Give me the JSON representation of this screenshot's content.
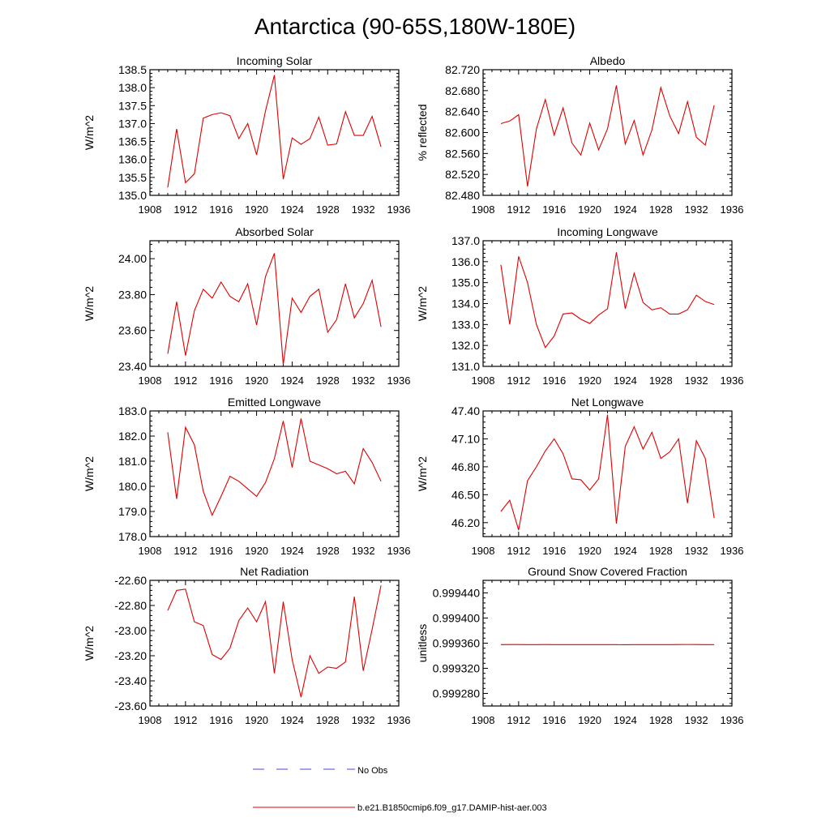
{
  "figure": {
    "title": "Antarctica (90-65S,180W-180E)",
    "line_color": "#e00000",
    "obs_color": "#4a4ad8"
  },
  "legend": [
    {
      "label": "No Obs",
      "style": "dashed",
      "color": "#4a4ad8"
    },
    {
      "label": "b.e21.B1850cmip6.f09_g17.DAMIP-hist-aer.003",
      "style": "solid",
      "color": "#e00000"
    }
  ],
  "chart_data": [
    {
      "type": "line",
      "title": "Incoming Solar",
      "ylabel": "W/m^2",
      "xlim": [
        1908,
        1936
      ],
      "xticks": [
        1908,
        1912,
        1916,
        1920,
        1924,
        1928,
        1932,
        1936
      ],
      "ylim": [
        135.0,
        138.5
      ],
      "yticks": [
        "135.0",
        "135.5",
        "136.0",
        "136.5",
        "137.0",
        "137.5",
        "138.0",
        "138.5"
      ],
      "x": [
        1910,
        1911,
        1912,
        1913,
        1914,
        1915,
        1916,
        1917,
        1918,
        1919,
        1920,
        1921,
        1922,
        1923,
        1924,
        1925,
        1926,
        1927,
        1928,
        1929,
        1930,
        1931,
        1932,
        1933,
        1934
      ],
      "values": [
        135.22,
        136.85,
        135.35,
        135.6,
        137.15,
        137.25,
        137.3,
        137.22,
        136.58,
        137.0,
        136.13,
        137.35,
        138.35,
        135.45,
        136.6,
        136.42,
        136.58,
        137.18,
        136.4,
        136.43,
        137.33,
        136.67,
        136.67,
        137.2,
        136.35
      ]
    },
    {
      "type": "line",
      "title": "Albedo",
      "ylabel": "% reflected",
      "xlim": [
        1908,
        1936
      ],
      "xticks": [
        1908,
        1912,
        1916,
        1920,
        1924,
        1928,
        1932,
        1936
      ],
      "ylim": [
        82.48,
        82.72
      ],
      "yticks": [
        "82.480",
        "82.520",
        "82.560",
        "82.600",
        "82.640",
        "82.680",
        "82.720"
      ],
      "x": [
        1910,
        1911,
        1912,
        1913,
        1914,
        1915,
        1916,
        1917,
        1918,
        1919,
        1920,
        1921,
        1922,
        1923,
        1924,
        1925,
        1926,
        1927,
        1928,
        1929,
        1930,
        1931,
        1932,
        1933,
        1934
      ],
      "values": [
        82.617,
        82.622,
        82.634,
        82.497,
        82.607,
        82.663,
        82.595,
        82.647,
        82.58,
        82.557,
        82.618,
        82.567,
        82.607,
        82.69,
        82.578,
        82.623,
        82.557,
        82.605,
        82.686,
        82.632,
        82.598,
        82.659,
        82.591,
        82.576,
        82.652
      ]
    },
    {
      "type": "line",
      "title": "Absorbed Solar",
      "ylabel": "W/m^2",
      "xlim": [
        1908,
        1936
      ],
      "xticks": [
        1908,
        1912,
        1916,
        1920,
        1924,
        1928,
        1932,
        1936
      ],
      "ylim": [
        23.4,
        24.1
      ],
      "yticks": [
        "23.40",
        "23.60",
        "23.80",
        "24.00"
      ],
      "x": [
        1910,
        1911,
        1912,
        1913,
        1914,
        1915,
        1916,
        1917,
        1918,
        1919,
        1920,
        1921,
        1922,
        1923,
        1924,
        1925,
        1926,
        1927,
        1928,
        1929,
        1930,
        1931,
        1932,
        1933,
        1934
      ],
      "values": [
        23.47,
        23.76,
        23.46,
        23.71,
        23.83,
        23.78,
        23.87,
        23.79,
        23.76,
        23.86,
        23.63,
        23.9,
        24.03,
        23.41,
        23.78,
        23.7,
        23.79,
        23.83,
        23.59,
        23.66,
        23.86,
        23.67,
        23.75,
        23.88,
        23.62
      ]
    },
    {
      "type": "line",
      "title": "Incoming Longwave",
      "ylabel": "W/m^2",
      "xlim": [
        1908,
        1936
      ],
      "xticks": [
        1908,
        1912,
        1916,
        1920,
        1924,
        1928,
        1932,
        1936
      ],
      "ylim": [
        131.0,
        137.0
      ],
      "yticks": [
        "131.0",
        "132.0",
        "133.0",
        "134.0",
        "135.0",
        "136.0",
        "137.0"
      ],
      "x": [
        1910,
        1911,
        1912,
        1913,
        1914,
        1915,
        1916,
        1917,
        1918,
        1919,
        1920,
        1921,
        1922,
        1923,
        1924,
        1925,
        1926,
        1927,
        1928,
        1929,
        1930,
        1931,
        1932,
        1933,
        1934
      ],
      "values": [
        135.85,
        133.0,
        136.25,
        135.0,
        133.0,
        131.9,
        132.45,
        133.5,
        133.55,
        133.25,
        133.05,
        133.45,
        133.75,
        136.45,
        133.75,
        135.45,
        134.05,
        133.7,
        133.8,
        133.5,
        133.5,
        133.7,
        134.4,
        134.1,
        133.95
      ]
    },
    {
      "type": "line",
      "title": "Emitted Longwave",
      "ylabel": "W/m^2",
      "xlim": [
        1908,
        1936
      ],
      "xticks": [
        1908,
        1912,
        1916,
        1920,
        1924,
        1928,
        1932,
        1936
      ],
      "ylim": [
        178.0,
        183.0
      ],
      "yticks": [
        "178.0",
        "179.0",
        "180.0",
        "181.0",
        "182.0",
        "183.0"
      ],
      "x": [
        1910,
        1911,
        1912,
        1913,
        1914,
        1915,
        1916,
        1917,
        1918,
        1919,
        1920,
        1921,
        1922,
        1923,
        1924,
        1925,
        1926,
        1927,
        1928,
        1929,
        1930,
        1931,
        1932,
        1933,
        1934
      ],
      "values": [
        182.15,
        179.5,
        182.35,
        181.65,
        179.8,
        178.85,
        179.6,
        180.4,
        180.2,
        179.9,
        179.6,
        180.15,
        181.1,
        182.6,
        180.75,
        182.7,
        181.0,
        180.85,
        180.7,
        180.5,
        180.6,
        180.1,
        181.5,
        180.95,
        180.2
      ]
    },
    {
      "type": "line",
      "title": "Net Longwave",
      "ylabel": "W/m^2",
      "xlim": [
        1908,
        1936
      ],
      "xticks": [
        1908,
        1912,
        1916,
        1920,
        1924,
        1928,
        1932,
        1936
      ],
      "ylim": [
        46.05,
        47.4
      ],
      "yticks": [
        "46.20",
        "46.50",
        "46.80",
        "47.10",
        "47.40"
      ],
      "x": [
        1910,
        1911,
        1912,
        1913,
        1914,
        1915,
        1916,
        1917,
        1918,
        1919,
        1920,
        1921,
        1922,
        1923,
        1924,
        1925,
        1926,
        1927,
        1928,
        1929,
        1930,
        1931,
        1932,
        1933,
        1934
      ],
      "values": [
        46.32,
        46.44,
        46.12,
        46.65,
        46.8,
        46.97,
        47.1,
        46.94,
        46.67,
        46.66,
        46.55,
        46.67,
        47.36,
        46.19,
        47.02,
        47.23,
        46.99,
        47.17,
        46.89,
        46.96,
        47.1,
        46.41,
        47.08,
        46.89,
        46.25
      ]
    },
    {
      "type": "line",
      "title": "Net Radiation",
      "ylabel": "W/m^2",
      "xlim": [
        1908,
        1936
      ],
      "xticks": [
        1908,
        1912,
        1916,
        1920,
        1924,
        1928,
        1932,
        1936
      ],
      "ylim": [
        -23.6,
        -22.6
      ],
      "yticks": [
        "-23.60",
        "-23.40",
        "-23.20",
        "-23.00",
        "-22.80",
        "-22.60"
      ],
      "x": [
        1910,
        1911,
        1912,
        1913,
        1914,
        1915,
        1916,
        1917,
        1918,
        1919,
        1920,
        1921,
        1922,
        1923,
        1924,
        1925,
        1926,
        1927,
        1928,
        1929,
        1930,
        1931,
        1932,
        1933,
        1934
      ],
      "values": [
        -22.84,
        -22.68,
        -22.67,
        -22.93,
        -22.96,
        -23.19,
        -23.23,
        -23.14,
        -22.92,
        -22.82,
        -22.93,
        -22.77,
        -23.34,
        -22.77,
        -23.23,
        -23.53,
        -23.2,
        -23.34,
        -23.29,
        -23.3,
        -23.25,
        -22.73,
        -23.32,
        -22.99,
        -22.64
      ]
    },
    {
      "type": "line",
      "title": "Ground Snow Covered Fraction",
      "ylabel": "unitless",
      "xlim": [
        1908,
        1936
      ],
      "xticks": [
        1908,
        1912,
        1916,
        1920,
        1924,
        1928,
        1932,
        1936
      ],
      "ylim": [
        0.99926,
        0.99946
      ],
      "yticks": [
        "0.999280",
        "0.999320",
        "0.999360",
        "0.999400",
        "0.999440"
      ],
      "x": [
        1910,
        1911,
        1912,
        1913,
        1914,
        1915,
        1916,
        1917,
        1918,
        1919,
        1920,
        1921,
        1922,
        1923,
        1924,
        1925,
        1926,
        1927,
        1928,
        1929,
        1930,
        1931,
        1932,
        1933,
        1934
      ],
      "values": [
        0.9993577,
        0.9993578,
        0.9993578,
        0.9993576,
        0.9993577,
        0.9993578,
        0.9993577,
        0.9993576,
        0.9993577,
        0.9993577,
        0.9993576,
        0.9993577,
        0.9993576,
        0.9993576,
        0.9993575,
        0.9993576,
        0.9993576,
        0.9993577,
        0.9993577,
        0.9993576,
        0.9993578,
        0.9993579,
        0.9993578,
        0.9993577,
        0.9993576
      ]
    }
  ]
}
